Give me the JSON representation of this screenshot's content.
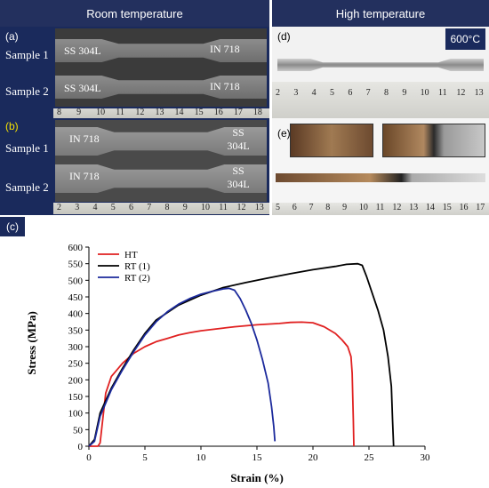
{
  "headers": {
    "left": "Room temperature",
    "right": "High temperature"
  },
  "panel_a": {
    "label": "(a)",
    "samples": [
      {
        "name": "Sample 1",
        "left": "SS 304L",
        "right": "IN 718"
      },
      {
        "name": "Sample 2",
        "left": "SS 304L",
        "right": "IN 718"
      }
    ],
    "ruler_numbers": [
      "8",
      "9",
      "10",
      "11",
      "12",
      "13",
      "14",
      "15",
      "16",
      "17",
      "18"
    ]
  },
  "panel_b": {
    "label": "(b)",
    "samples": [
      {
        "name": "Sample 1",
        "left": "IN 718",
        "right": "SS 304L"
      },
      {
        "name": "Sample 2",
        "left": "IN 718",
        "right": "SS 304L"
      }
    ],
    "ruler_numbers": [
      "2",
      "3",
      "4",
      "5",
      "6",
      "7",
      "8",
      "9",
      "10",
      "11",
      "12",
      "13"
    ]
  },
  "panel_d": {
    "label": "(d)",
    "temperature": "600°C",
    "ruler_numbers": [
      "2",
      "3",
      "4",
      "5",
      "6",
      "7",
      "8",
      "9",
      "10",
      "11",
      "12",
      "13"
    ]
  },
  "panel_e": {
    "label": "(e)",
    "ruler_numbers": [
      "5",
      "6",
      "7",
      "8",
      "9",
      "10",
      "11",
      "12",
      "13",
      "14",
      "15",
      "16",
      "17"
    ]
  },
  "panel_c": {
    "label": "(c)"
  },
  "chart_data": {
    "type": "line",
    "xlabel": "Strain (%)",
    "ylabel": "Stress (MPa)",
    "xlim": [
      0,
      30
    ],
    "ylim": [
      0,
      600
    ],
    "xticks": [
      0,
      5,
      10,
      15,
      20,
      25,
      30
    ],
    "yticks": [
      0,
      50,
      100,
      150,
      200,
      250,
      300,
      350,
      400,
      450,
      500,
      550,
      600
    ],
    "legend_position": "top-left",
    "series": [
      {
        "name": "HT",
        "color": "#e02020",
        "x": [
          0,
          0.5,
          0.8,
          1.0,
          1.5,
          2.0,
          3.0,
          4.0,
          5.0,
          6.0,
          7.0,
          8.0,
          9.0,
          10.0,
          11.0,
          12.0,
          13.0,
          14.0,
          15.0,
          16.0,
          17.0,
          18.0,
          19.0,
          20.0,
          21.0,
          22.0,
          22.6,
          23.1,
          23.4,
          23.5,
          23.6,
          23.65
        ],
        "y": [
          0,
          0,
          0,
          10,
          160,
          210,
          250,
          280,
          300,
          315,
          325,
          335,
          342,
          348,
          352,
          356,
          360,
          363,
          366,
          368,
          370,
          373,
          374,
          372,
          360,
          340,
          320,
          300,
          270,
          220,
          80,
          0
        ]
      },
      {
        "name": "RT (1)",
        "color": "#000000",
        "x": [
          0,
          0.5,
          1.0,
          2.0,
          3.0,
          4.0,
          5.0,
          6.0,
          8.0,
          10.0,
          12.0,
          14.0,
          16.0,
          18.0,
          20.0,
          22.0,
          23.0,
          24.0,
          24.4,
          24.8,
          25.3,
          25.8,
          26.3,
          26.7,
          27.0,
          27.1,
          27.2
        ],
        "y": [
          0,
          20,
          100,
          175,
          235,
          290,
          340,
          380,
          425,
          455,
          478,
          493,
          507,
          520,
          532,
          542,
          548,
          550,
          545,
          510,
          460,
          410,
          350,
          270,
          180,
          80,
          0
        ]
      },
      {
        "name": "RT (2)",
        "color": "#1c2a9c",
        "x": [
          0,
          0.5,
          1.0,
          2.0,
          3.0,
          4.0,
          5.0,
          6.0,
          7.0,
          8.0,
          9.0,
          10.0,
          11.0,
          12.0,
          12.5,
          13.0,
          13.5,
          14.0,
          14.5,
          15.0,
          15.5,
          16.0,
          16.3,
          16.5,
          16.6
        ],
        "y": [
          0,
          15,
          90,
          170,
          230,
          285,
          335,
          375,
          405,
          428,
          445,
          458,
          467,
          474,
          476,
          470,
          445,
          410,
          370,
          320,
          260,
          190,
          120,
          60,
          15
        ]
      }
    ]
  }
}
